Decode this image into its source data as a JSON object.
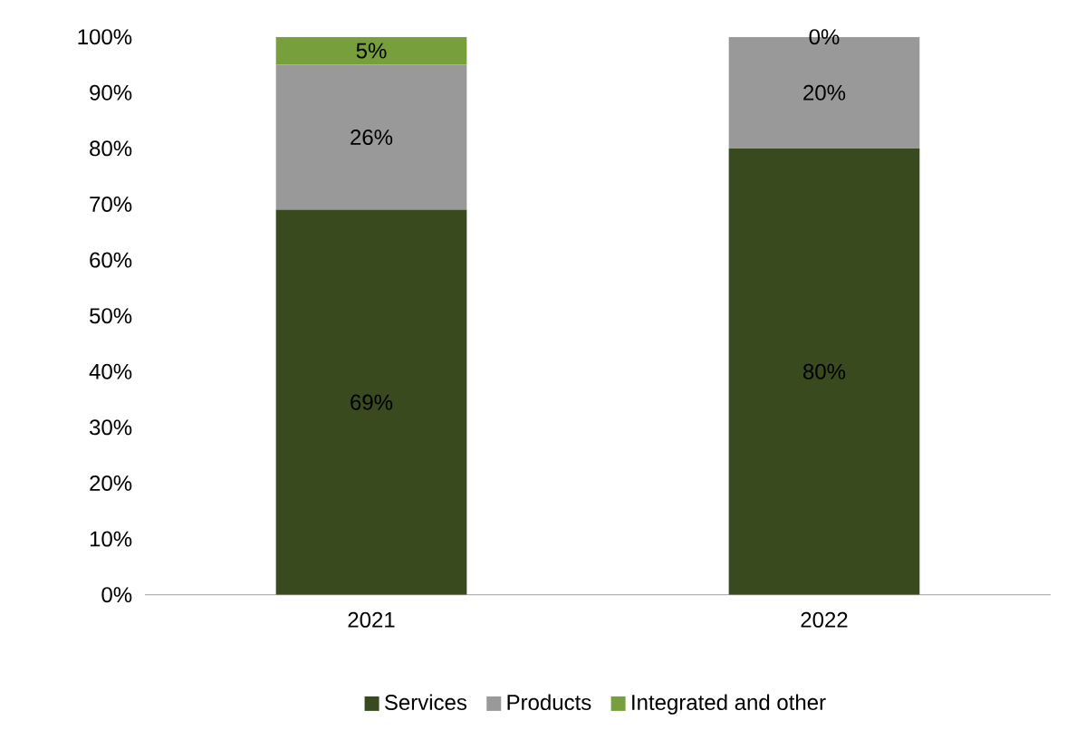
{
  "chart_data": {
    "type": "bar",
    "stacked": true,
    "categories": [
      "2021",
      "2022"
    ],
    "series": [
      {
        "name": "Services",
        "color": "#384a1e",
        "values": [
          69,
          80
        ],
        "value_labels": [
          "69%",
          "80%"
        ]
      },
      {
        "name": "Products",
        "color": "#999999",
        "values": [
          26,
          20
        ],
        "value_labels": [
          "26%",
          "20%"
        ]
      },
      {
        "name": "Integrated and other",
        "color": "#77a03c",
        "values": [
          5,
          0
        ],
        "value_labels": [
          "5%",
          "0%"
        ]
      }
    ],
    "ylim": [
      0,
      100
    ],
    "yticks": [
      {
        "value": 0,
        "label": "0%"
      },
      {
        "value": 10,
        "label": "10%"
      },
      {
        "value": 20,
        "label": "20%"
      },
      {
        "value": 30,
        "label": "30%"
      },
      {
        "value": 40,
        "label": "40%"
      },
      {
        "value": 50,
        "label": "50%"
      },
      {
        "value": 60,
        "label": "60%"
      },
      {
        "value": 70,
        "label": "70%"
      },
      {
        "value": 80,
        "label": "80%"
      },
      {
        "value": 90,
        "label": "90%"
      },
      {
        "value": 100,
        "label": "100%"
      }
    ],
    "legend": "bottom",
    "grid": false
  }
}
